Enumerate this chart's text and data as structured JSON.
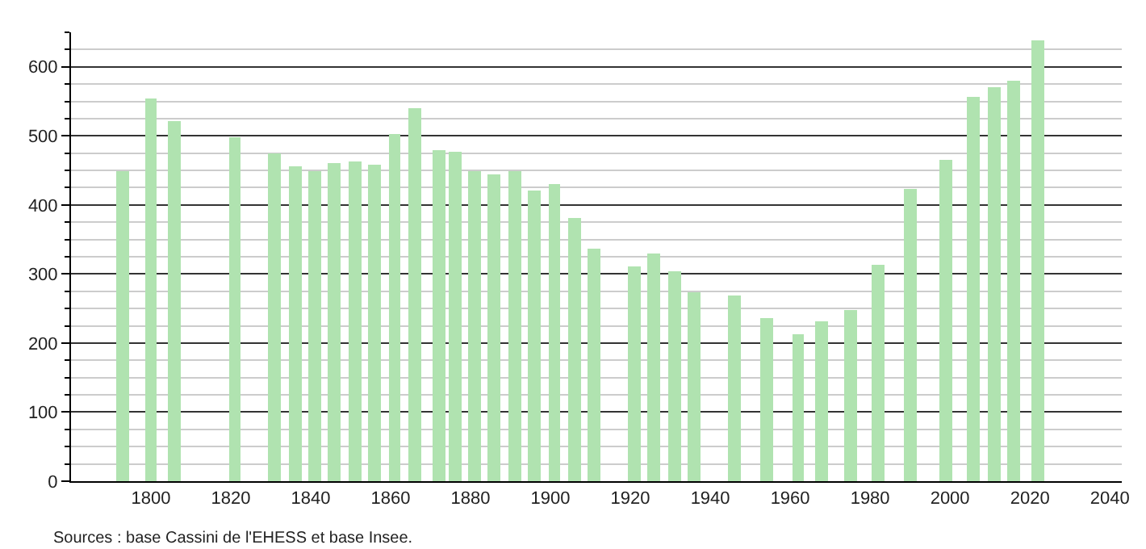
{
  "chart_data": {
    "type": "bar",
    "x": [
      1793,
      1800,
      1806,
      1821,
      1831,
      1836,
      1841,
      1846,
      1851,
      1856,
      1861,
      1866,
      1872,
      1876,
      1881,
      1886,
      1891,
      1896,
      1901,
      1906,
      1911,
      1921,
      1926,
      1931,
      1936,
      1946,
      1954,
      1962,
      1968,
      1975,
      1982,
      1990,
      1999,
      2006,
      2011,
      2016,
      2022
    ],
    "values": [
      450,
      555,
      521,
      499,
      474,
      455,
      450,
      460,
      463,
      458,
      503,
      540,
      479,
      476,
      449,
      445,
      449,
      420,
      430,
      382,
      337,
      312,
      330,
      304,
      273,
      269,
      236,
      213,
      231,
      248,
      314,
      424,
      465,
      557,
      571,
      580,
      639
    ],
    "color": "#b0e3b0",
    "xlim": [
      1780,
      2043
    ],
    "ylim": [
      0,
      650
    ],
    "xticks": [
      1800,
      1820,
      1840,
      1860,
      1880,
      1900,
      1920,
      1940,
      1960,
      1980,
      2000,
      2020,
      2040
    ],
    "yticks": [
      0,
      {
        "value": 25,
        "label": null
      },
      {
        "value": 50,
        "label": null
      },
      {
        "value": 75,
        "label": null
      },
      100,
      {
        "value": 125,
        "label": null
      },
      {
        "value": 150,
        "label": null
      },
      {
        "value": 175,
        "label": null
      },
      200,
      {
        "value": 225,
        "label": null
      },
      {
        "value": 250,
        "label": null
      },
      {
        "value": 275,
        "label": null
      },
      300,
      {
        "value": 325,
        "label": null
      },
      {
        "value": 350,
        "label": null
      },
      {
        "value": 375,
        "label": null
      },
      400,
      {
        "value": 425,
        "label": null
      },
      {
        "value": 450,
        "label": null
      },
      {
        "value": 475,
        "label": null
      },
      500,
      {
        "value": 525,
        "label": null
      },
      {
        "value": 550,
        "label": null
      },
      {
        "value": 575,
        "label": null
      },
      600,
      {
        "value": 625,
        "label": null
      },
      {
        "value": 650,
        "label": null
      }
    ],
    "grid": "y",
    "annotations": [
      "Sources : base Cassini de l'EHESS et base Insee."
    ]
  }
}
